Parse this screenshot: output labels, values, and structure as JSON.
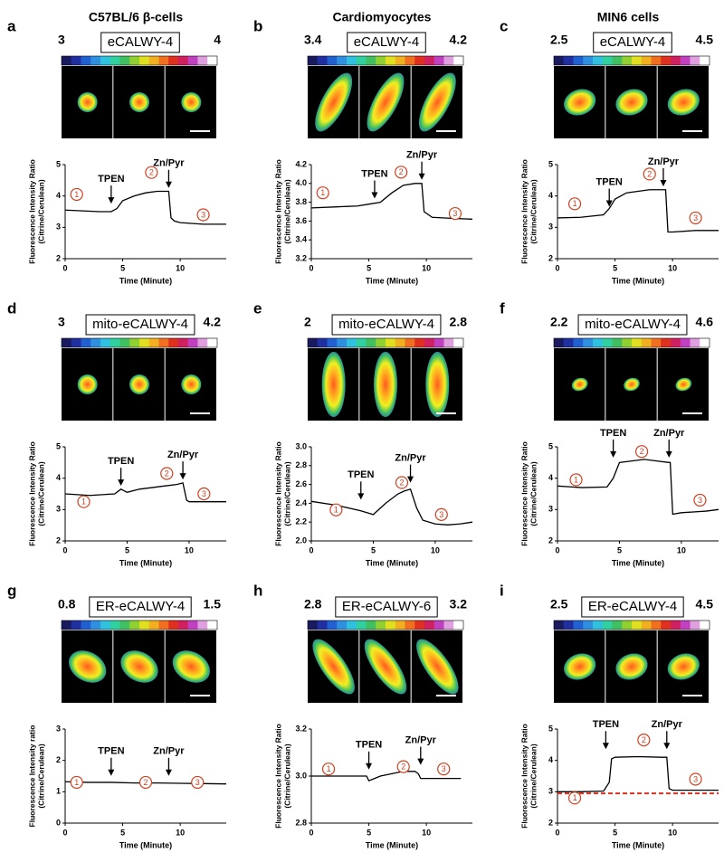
{
  "column_titles": [
    "C57BL/6  β-cells",
    "Cardiomyocytes",
    "MIN6 cells"
  ],
  "chart_data": [
    {
      "type": "line",
      "label": "a",
      "title": "eCALWY-4",
      "clim": [
        3,
        4
      ],
      "xlabel": "Time (Minute)",
      "ylabel": [
        "Fluorescence Intensity Ratio",
        "(Citrine/Cerulean)"
      ],
      "xlim": [
        0,
        14
      ],
      "xticks": [
        0,
        5,
        10
      ],
      "ylim": [
        2,
        5
      ],
      "yticks": [
        2,
        3,
        4,
        5
      ],
      "x": [
        0,
        3,
        4,
        4.5,
        5,
        6,
        7,
        8,
        9,
        9.2,
        9.5,
        10,
        12,
        14
      ],
      "series": [
        {
          "color": "#000000",
          "values": [
            3.55,
            3.5,
            3.5,
            3.6,
            3.85,
            4.0,
            4.1,
            4.15,
            4.15,
            3.3,
            3.2,
            3.15,
            3.1,
            3.1
          ]
        }
      ],
      "arrows": [
        {
          "text": "TPEN",
          "x": 4,
          "y": 3.7
        },
        {
          "text": "Zn/Pyr",
          "x": 9,
          "y": 4.2
        }
      ],
      "markers": [
        {
          "text": "1",
          "x": 1,
          "y": 4.05
        },
        {
          "text": "2",
          "x": 7.5,
          "y": 4.75
        },
        {
          "text": "3",
          "x": 12,
          "y": 3.4
        }
      ]
    },
    {
      "type": "line",
      "label": "b",
      "title": "eCALWY-4",
      "clim": [
        3.4,
        4.2
      ],
      "xlabel": "Time (Minute)",
      "ylabel": [
        "Fluorescence Intensity Ratio",
        "(Citrine/Cerulean)"
      ],
      "xlim": [
        0,
        14
      ],
      "xticks": [
        0,
        5,
        10
      ],
      "ylim": [
        3.2,
        4.2
      ],
      "yticks": [
        3.2,
        3.4,
        3.6,
        3.8,
        {
          "value": 4,
          "label": "4.0"
        },
        4.2
      ],
      "x": [
        0,
        2,
        4,
        5,
        6,
        7,
        8,
        9,
        9.6,
        9.8,
        10.5,
        12,
        14
      ],
      "series": [
        {
          "color": "#000000",
          "values": [
            3.74,
            3.75,
            3.76,
            3.78,
            3.8,
            3.9,
            3.98,
            4.0,
            4.0,
            3.7,
            3.64,
            3.63,
            3.62
          ]
        }
      ],
      "arrows": [
        {
          "text": "TPEN",
          "x": 5.5,
          "y": 3.82
        },
        {
          "text": "Zn/Pyr",
          "x": 9.6,
          "y": 4.02
        }
      ],
      "markers": [
        {
          "text": "1",
          "x": 1,
          "y": 3.9
        },
        {
          "text": "2",
          "x": 7.8,
          "y": 4.12
        },
        {
          "text": "3",
          "x": 12.5,
          "y": 3.68
        }
      ]
    },
    {
      "type": "line",
      "label": "c",
      "title": "eCALWY-4",
      "clim": [
        2.5,
        4.5
      ],
      "xlabel": "Time (Minute)",
      "ylabel": [
        "Fluorescence Intensity Ratio",
        "(Citrine/Cerulean)"
      ],
      "xlim": [
        0,
        14
      ],
      "xticks": [
        0,
        5,
        10
      ],
      "ylim": [
        2,
        5
      ],
      "yticks": [
        2,
        3,
        4,
        5
      ],
      "x": [
        0,
        2,
        4,
        4.5,
        5,
        6,
        7,
        8,
        9,
        9.4,
        9.6,
        10,
        12,
        14
      ],
      "series": [
        {
          "color": "#000000",
          "values": [
            3.3,
            3.32,
            3.4,
            3.6,
            3.9,
            4.1,
            4.15,
            4.2,
            4.2,
            4.2,
            2.85,
            2.85,
            2.9,
            2.9
          ]
        }
      ],
      "arrows": [
        {
          "text": "TPEN",
          "x": 4.5,
          "y": 3.6
        },
        {
          "text": "Zn/Pyr",
          "x": 9.2,
          "y": 4.25
        }
      ],
      "markers": [
        {
          "text": "1",
          "x": 1.5,
          "y": 3.75
        },
        {
          "text": "2",
          "x": 8,
          "y": 4.7
        },
        {
          "text": "3",
          "x": 12,
          "y": 3.3
        }
      ]
    },
    {
      "type": "line",
      "label": "d",
      "title": "mito-eCALWY-4",
      "clim": [
        3,
        4.2
      ],
      "xlabel": "Time (Minute)",
      "ylabel": [
        "Fluorescence Intensity Ratio",
        "(Citrine/Cerulean)"
      ],
      "xlim": [
        0,
        13
      ],
      "xticks": [
        0,
        5,
        10
      ],
      "ylim": [
        2,
        5
      ],
      "yticks": [
        2,
        3,
        4,
        5
      ],
      "x": [
        0,
        2,
        4,
        4.5,
        5,
        6,
        7,
        8,
        9,
        9.5,
        9.8,
        10,
        12,
        13
      ],
      "series": [
        {
          "color": "#000000",
          "values": [
            3.5,
            3.45,
            3.5,
            3.65,
            3.55,
            3.65,
            3.7,
            3.75,
            3.8,
            3.85,
            3.3,
            3.25,
            3.25,
            3.25
          ]
        }
      ],
      "arrows": [
        {
          "text": "TPEN",
          "x": 4.5,
          "y": 3.7
        },
        {
          "text": "Zn/Pyr",
          "x": 9.5,
          "y": 3.9
        }
      ],
      "markers": [
        {
          "text": "1",
          "x": 1.5,
          "y": 3.25
        },
        {
          "text": "2",
          "x": 8.2,
          "y": 4.15
        },
        {
          "text": "3",
          "x": 11.2,
          "y": 3.5
        }
      ]
    },
    {
      "type": "line",
      "label": "e",
      "title": "mito-eCALWY-4",
      "clim": [
        2,
        2.8
      ],
      "xlabel": "Time (Minute)",
      "ylabel": [
        "Fluorescence Intensity Ratio",
        "(Citrine/Cerulean)"
      ],
      "xlim": [
        0,
        13
      ],
      "xticks": [
        0,
        5,
        10
      ],
      "ylim": [
        2,
        3
      ],
      "yticks": [
        {
          "value": 2,
          "label": "2.0"
        },
        2.2,
        2.4,
        2.6,
        2.8,
        {
          "value": 3,
          "label": "3.0"
        }
      ],
      "x": [
        0,
        2,
        4,
        5,
        6,
        7,
        7.5,
        8,
        8.5,
        9,
        10,
        11,
        12,
        13
      ],
      "series": [
        {
          "color": "#000000",
          "values": [
            2.42,
            2.38,
            2.32,
            2.28,
            2.4,
            2.5,
            2.53,
            2.55,
            2.35,
            2.22,
            2.18,
            2.17,
            2.18,
            2.2
          ]
        }
      ],
      "arrows": [
        {
          "text": "TPEN",
          "x": 4,
          "y": 2.42
        },
        {
          "text": "Zn/Pyr",
          "x": 8,
          "y": 2.6
        }
      ],
      "markers": [
        {
          "text": "1",
          "x": 2,
          "y": 2.33
        },
        {
          "text": "2",
          "x": 7.3,
          "y": 2.62
        },
        {
          "text": "3",
          "x": 10.5,
          "y": 2.28
        }
      ]
    },
    {
      "type": "line",
      "label": "f",
      "title": "mito-eCALWY-4",
      "clim": [
        2.2,
        4.6
      ],
      "xlabel": "Time (Minute)",
      "ylabel": [
        "Fluorescence Intensity Ratio",
        "(Citrine/Cerulean)"
      ],
      "xlim": [
        0,
        13
      ],
      "xticks": [
        0,
        5,
        10
      ],
      "ylim": [
        2,
        5
      ],
      "yticks": [
        2,
        3,
        4,
        5
      ],
      "x": [
        0,
        2,
        4,
        4.5,
        5,
        6,
        7,
        8,
        9,
        9.1,
        9.3,
        10,
        12,
        13
      ],
      "series": [
        {
          "color": "#000000",
          "values": [
            3.75,
            3.7,
            3.72,
            4.0,
            4.5,
            4.55,
            4.6,
            4.55,
            4.5,
            4.5,
            2.85,
            2.9,
            2.95,
            3.0
          ]
        }
      ],
      "arrows": [
        {
          "text": "TPEN",
          "x": 4.5,
          "y": 4.6
        },
        {
          "text": "Zn/Pyr",
          "x": 9,
          "y": 4.6
        }
      ],
      "markers": [
        {
          "text": "1",
          "x": 1.5,
          "y": 3.95
        },
        {
          "text": "2",
          "x": 6.8,
          "y": 4.85
        },
        {
          "text": "3",
          "x": 11.5,
          "y": 3.3
        }
      ]
    },
    {
      "type": "line",
      "label": "g",
      "title": "ER-eCALWY-4",
      "clim": [
        0.8,
        1.5
      ],
      "xlabel": "Time (Minute)",
      "ylabel": [
        "Fluorescence Intensity ratio",
        "(Citrine/Cerulean)"
      ],
      "xlim": [
        0,
        14
      ],
      "xticks": [
        0,
        5,
        10
      ],
      "ylim": [
        0,
        3
      ],
      "yticks": [
        0,
        1,
        2,
        3
      ],
      "x": [
        0,
        2,
        4,
        6,
        8,
        10,
        12,
        14
      ],
      "series": [
        {
          "color": "#000000",
          "values": [
            1.32,
            1.3,
            1.3,
            1.28,
            1.28,
            1.27,
            1.26,
            1.25
          ]
        }
      ],
      "arrows": [
        {
          "text": "TPEN",
          "x": 4,
          "y": 1.45
        },
        {
          "text": "Zn/Pyr",
          "x": 9,
          "y": 1.45
        }
      ],
      "markers": [
        {
          "text": "1",
          "x": 1,
          "y": 1.3
        },
        {
          "text": "2",
          "x": 7,
          "y": 1.3
        },
        {
          "text": "3",
          "x": 11.5,
          "y": 1.3
        }
      ]
    },
    {
      "type": "line",
      "label": "h",
      "title": "ER-eCALWY-6",
      "clim": [
        2.8,
        3.2
      ],
      "xlabel": "Time (Minute)",
      "ylabel": [
        "Fluorescence Intensity Ratio",
        "(Citrine/Cerulean)"
      ],
      "xlim": [
        0,
        14
      ],
      "xticks": [
        0,
        5,
        10
      ],
      "ylim": [
        2.8,
        3.2
      ],
      "yticks": [
        2.8,
        {
          "value": 3,
          "label": "3.0"
        },
        3.2
      ],
      "x": [
        0,
        2,
        4,
        4.8,
        5,
        5.5,
        6,
        7,
        8,
        9,
        9.3,
        9.5,
        10,
        12,
        13
      ],
      "series": [
        {
          "color": "#000000",
          "values": [
            3.0,
            3.0,
            3.0,
            3.0,
            2.98,
            2.99,
            3.0,
            3.01,
            3.02,
            3.02,
            3.01,
            2.99,
            2.99,
            2.99,
            2.99
          ]
        }
      ],
      "arrows": [
        {
          "text": "TPEN",
          "x": 5,
          "y": 3.02
        },
        {
          "text": "Zn/Pyr",
          "x": 9.5,
          "y": 3.04
        }
      ],
      "markers": [
        {
          "text": "1",
          "x": 1.5,
          "y": 3.03
        },
        {
          "text": "2",
          "x": 8,
          "y": 3.04
        },
        {
          "text": "3",
          "x": 11.5,
          "y": 3.03
        }
      ]
    },
    {
      "type": "line",
      "label": "i",
      "title": "ER-eCALWY-4",
      "clim": [
        2.5,
        4.5
      ],
      "xlabel": "Time (Minute)",
      "ylabel": [
        "Fluorescence Intensity Ratio",
        "(Citrine/Cerulean)"
      ],
      "xlim": [
        0,
        14
      ],
      "xticks": [
        0,
        5,
        10
      ],
      "ylim": [
        2,
        5
      ],
      "yticks": [
        2,
        3,
        4,
        5
      ],
      "x": [
        0,
        2,
        4,
        4.5,
        4.7,
        5,
        7,
        9,
        9.5,
        9.7,
        10,
        12,
        14
      ],
      "series": [
        {
          "color": "#000000",
          "values": [
            3.0,
            3.0,
            3.02,
            3.3,
            4.05,
            4.1,
            4.12,
            4.1,
            4.1,
            3.1,
            3.05,
            3.05,
            3.05
          ]
        }
      ],
      "reference_line": {
        "value": 2.95,
        "color": "#e03020",
        "style": "dashed"
      },
      "arrows": [
        {
          "text": "TPEN",
          "x": 4.2,
          "y": 4.3
        },
        {
          "text": "Zn/Pyr",
          "x": 9.5,
          "y": 4.3
        }
      ],
      "markers": [
        {
          "text": "1",
          "x": 1.5,
          "y": 2.8
        },
        {
          "text": "2",
          "x": 7.5,
          "y": 4.65
        },
        {
          "text": "3",
          "x": 12,
          "y": 3.4
        }
      ]
    }
  ]
}
